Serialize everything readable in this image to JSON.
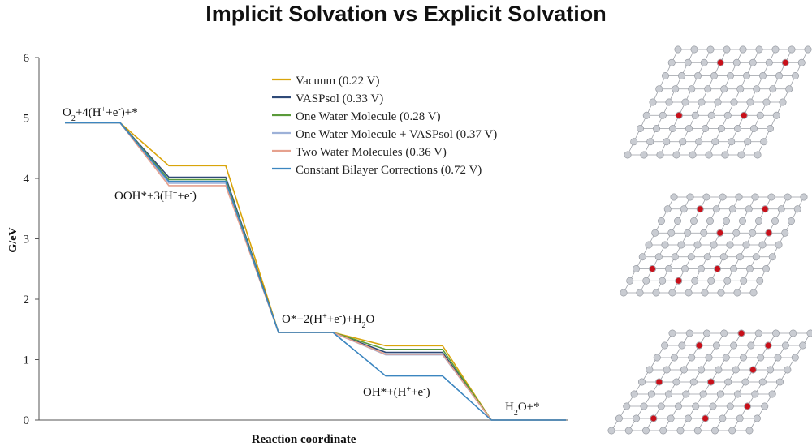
{
  "title": "Implicit Solvation vs Explicit Solvation",
  "chart_data": {
    "type": "line",
    "xlabel": "Reaction coordinate",
    "ylabel": "G/eV",
    "ylim": [
      0,
      6
    ],
    "yticks": [
      "0",
      "1",
      "2",
      "3",
      "4",
      "5",
      "6"
    ],
    "grid": false,
    "legend_position": "top-right",
    "steps": [
      "O2+4(H++e-)+*",
      "OOH*+3(H++e-)",
      "O*+2(H++e-)+H2O",
      "OH*+(H++e-)",
      "H2O+*"
    ],
    "series": [
      {
        "name": "Vacuum (0.22 V)",
        "color": "#d9a40a",
        "values": [
          4.92,
          4.21,
          1.45,
          1.23,
          0
        ]
      },
      {
        "name": "VASPsol (0.33 V)",
        "color": "#2f4a78",
        "values": [
          4.92,
          4.02,
          1.45,
          1.12,
          0
        ]
      },
      {
        "name": "One Water Molecule (0.28 V)",
        "color": "#5a9a3a",
        "values": [
          4.92,
          3.98,
          1.45,
          1.17,
          0
        ]
      },
      {
        "name": "One Water Molecule + VASPsol (0.37 V)",
        "color": "#9db1d8",
        "values": [
          4.92,
          3.92,
          1.45,
          1.08,
          0
        ]
      },
      {
        "name": "Two Water Molecules (0.36 V)",
        "color": "#e6a18e",
        "values": [
          4.92,
          3.88,
          1.45,
          1.09,
          0
        ]
      },
      {
        "name": "Constant Bilayer Corrections (0.72 V)",
        "color": "#3c86c0",
        "values": [
          4.92,
          3.95,
          1.45,
          0.73,
          0
        ]
      }
    ],
    "step_labels": [
      {
        "main": "O",
        "sub1": "2",
        "mid": "+4(H",
        "sup1": "+",
        "mid2": "+e",
        "sup2": "-",
        "tail": ")+*"
      },
      {
        "main": "OOH*+3(H",
        "sup1": "+",
        "mid2": "+e",
        "sup2": "-",
        "tail": ")"
      },
      {
        "main": "O*+2(H",
        "sup1": "+",
        "mid2": "+e",
        "sup2": "-",
        "tail": ")+H",
        "sub_end": "2",
        "end": "O"
      },
      {
        "main": "OH*+(H",
        "sup1": "+",
        "mid2": "+e",
        "sup2": "-",
        "tail": ")"
      },
      {
        "main": "H",
        "sub1": "2",
        "mid": "O+*"
      }
    ]
  },
  "colors": {
    "atom": "#c9ccd2",
    "adsorbate": "#c8101a",
    "axis": "#555555"
  }
}
